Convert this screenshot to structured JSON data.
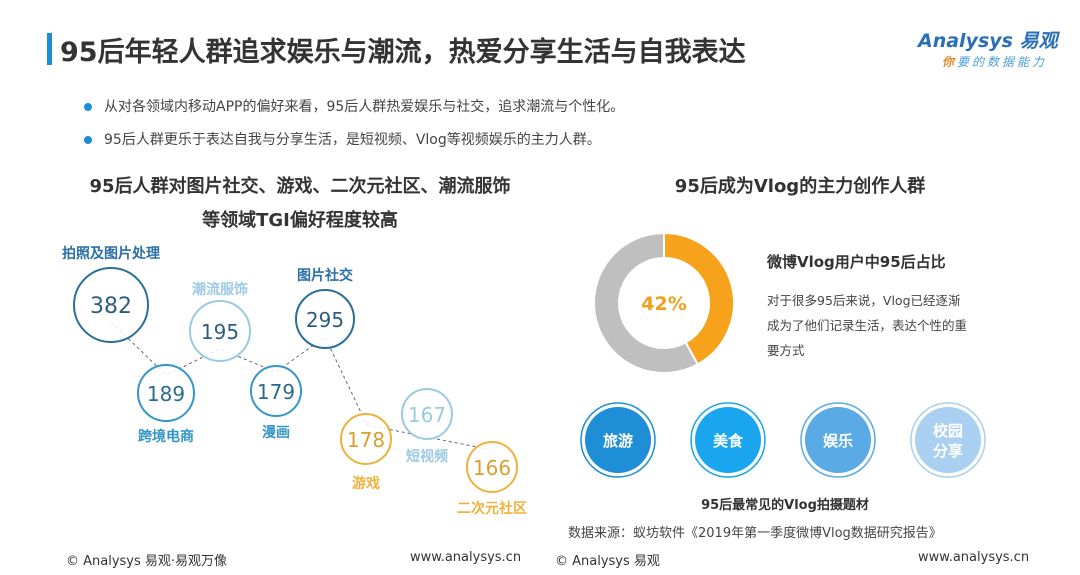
{
  "title": "95后年轻人群追求娱乐与潮流，热爱分享生活与自我表达",
  "logo": {
    "brand": "Analysys 易观",
    "tagline_first": "你",
    "tagline_rest": "要的数据能力"
  },
  "bullets": [
    "从对各领域内移动APP的偏好来看，95后人群热爱娱乐与社交，追求潮流与个性化。",
    "95后人群更乐于表达自我与分享生活，是短视频、Vlog等视频娱乐的主力人群。"
  ],
  "left": {
    "heading_line1": "95后人群对图片社交、游戏、二次元社区、潮流服饰",
    "heading_line2": "等领域TGI偏好程度较高"
  },
  "right": {
    "heading": "95后成为Vlog的主力创作人群",
    "donut_title": "微博Vlog用户中95后占比",
    "donut_desc": "对于很多95后来说，Vlog已经逐渐成为了他们记录生活，表达个性的重要方式",
    "topics_caption": "95后最常见的Vlog拍摄题材",
    "source": "数据来源：蚁坊软件《2019年第一季度微博Vlog数据研究报告》"
  },
  "footer": {
    "left_copyright": "© Analysys 易观·易观万像",
    "left_url": "www.analysys.cn",
    "right_copyright": "© Analysys 易观",
    "right_url": "www.analysys.cn"
  },
  "chart_data": [
    {
      "type": "bubble",
      "title": "95后人群对图片社交、游戏、二次元社区、潮流服饰等领域TGI偏好程度较高",
      "categories": [
        "拍照及图片处理",
        "跨境电商",
        "潮流服饰",
        "漫画",
        "图片社交",
        "游戏",
        "短视频",
        "二次元社区"
      ],
      "values": [
        382,
        189,
        195,
        179,
        295,
        178,
        167,
        166
      ],
      "colors": [
        "#2b6f98",
        "#3596c8",
        "#9ccae4",
        "#3596c8",
        "#2b6f98",
        "#f0b13c",
        "#9ccae4",
        "#f0b13c"
      ]
    },
    {
      "type": "pie",
      "title": "微博Vlog用户中95后占比",
      "values": [
        42,
        58
      ],
      "label": "42%",
      "colors": [
        "#f7a21b",
        "#bfbfbf"
      ]
    },
    {
      "type": "table",
      "title": "95后最常见的Vlog拍摄题材",
      "categories": [
        "旅游",
        "美食",
        "娱乐",
        "校园分享"
      ],
      "colors": [
        "#1e8ed6",
        "#1aa6ee",
        "#5aaae6",
        "#a9d0f0"
      ]
    }
  ]
}
